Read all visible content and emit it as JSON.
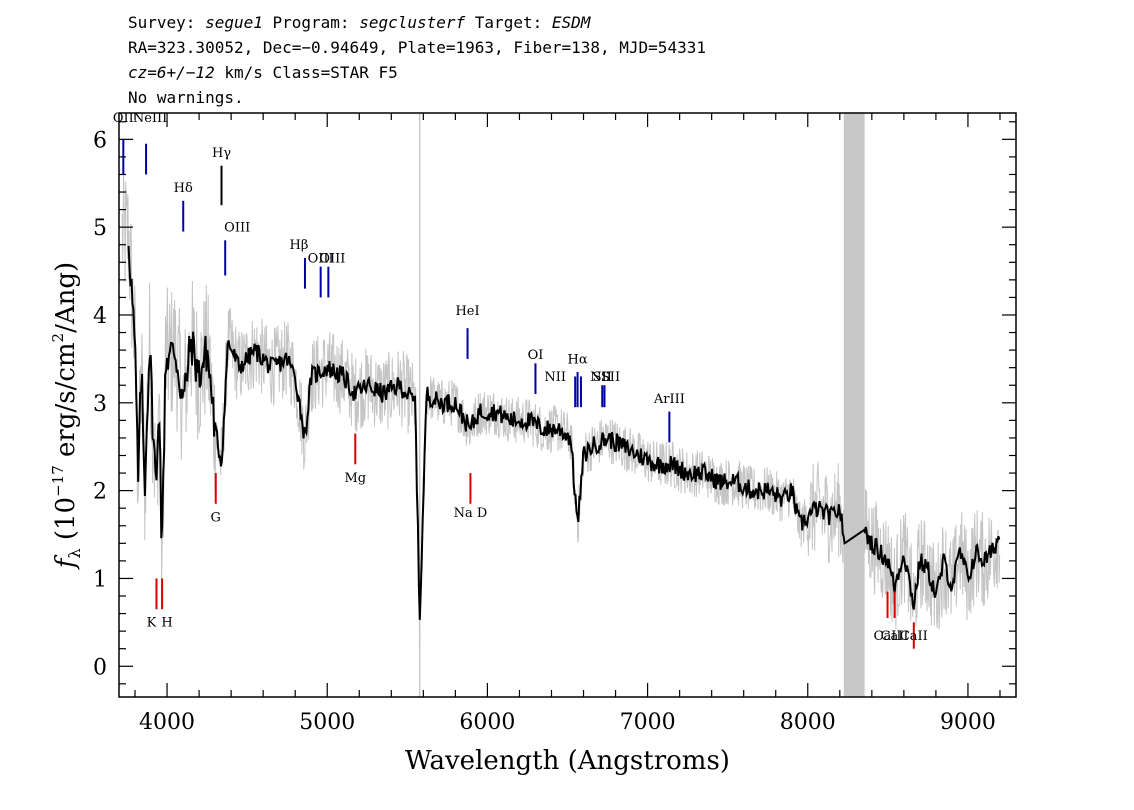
{
  "header": {
    "line1": {
      "survey_label": "Survey: ",
      "survey": "segue1",
      "program_label": " Program: ",
      "program": "segclusterf",
      "target_label": " Target: ",
      "target": "ESDM"
    },
    "line2": "RA=323.30052, Dec=−0.94649, Plate=1963, Fiber=138, MJD=54331",
    "line3": {
      "redshift": "cz=6+/−12",
      "rest": " km/s Class=STAR F5"
    },
    "line4": "No warnings."
  },
  "chart_data": {
    "type": "line",
    "xlabel": "Wavelength (Angstroms)",
    "ylabel": "f_λ (10^-17 erg/s/cm^2/Ang)",
    "ylabel_parts": {
      "f": "f",
      "lambda": "λ",
      "pre": " (10",
      "exp1": "−17",
      "mid": " erg/s/cm",
      "exp2": "2",
      "post": "/Ang)"
    },
    "xlim": [
      3700,
      9300
    ],
    "ylim": [
      -0.35,
      6.3
    ],
    "x_ticks": [
      4000,
      5000,
      6000,
      7000,
      8000,
      9000
    ],
    "x_tick_labels": [
      "4000",
      "5000",
      "6000",
      "7000",
      "8000",
      "9000"
    ],
    "y_ticks": [
      0,
      1,
      2,
      3,
      4,
      5,
      6
    ],
    "y_tick_labels": [
      "0",
      "1",
      "2",
      "3",
      "4",
      "5",
      "6"
    ],
    "masked_band": [
      8225,
      8355
    ],
    "sky_line": 5577,
    "series": [
      {
        "role": "smoothed_flux",
        "color": "#000000",
        "x": [
          3760,
          3800,
          3820,
          3840,
          3860,
          3890,
          3920,
          3934,
          3950,
          3968,
          3990,
          4050,
          4101,
          4150,
          4200,
          4250,
          4300,
          4340,
          4380,
          4450,
          4550,
          4650,
          4750,
          4800,
          4861,
          4900,
          5000,
          5100,
          5173,
          5250,
          5350,
          5450,
          5550,
          5577,
          5620,
          5700,
          5800,
          5890,
          5950,
          6050,
          6150,
          6250,
          6350,
          6450,
          6520,
          6563,
          6600,
          6650,
          6750,
          6850,
          6950,
          7050,
          7150,
          7250,
          7350,
          7450,
          7550,
          7650,
          7750,
          7850,
          7900,
          7950,
          8050,
          8150,
          8200,
          8230,
          8350,
          8400,
          8450,
          8500,
          8542,
          8600,
          8662,
          8700,
          8750,
          8800,
          8850,
          8900,
          8950,
          9000,
          9050,
          9100,
          9150,
          9200
        ],
        "y": [
          4.9,
          3.6,
          2.1,
          3.4,
          2.0,
          3.7,
          2.4,
          2.0,
          3.2,
          1.2,
          3.5,
          3.6,
          3.0,
          3.7,
          3.3,
          3.6,
          2.7,
          2.3,
          3.7,
          3.4,
          3.6,
          3.4,
          3.5,
          3.3,
          2.6,
          3.3,
          3.4,
          3.3,
          3.1,
          3.2,
          3.1,
          3.2,
          3.0,
          0.5,
          3.1,
          3.0,
          3.0,
          2.7,
          2.9,
          2.9,
          2.8,
          2.8,
          2.7,
          2.7,
          2.6,
          1.6,
          2.4,
          2.5,
          2.6,
          2.5,
          2.4,
          2.3,
          2.3,
          2.2,
          2.2,
          2.1,
          2.1,
          2.0,
          2.0,
          1.9,
          2.0,
          1.6,
          1.8,
          1.7,
          1.8,
          1.4,
          1.55,
          1.4,
          1.3,
          1.2,
          0.9,
          1.3,
          0.7,
          1.2,
          1.1,
          0.8,
          1.2,
          0.9,
          1.3,
          1.0,
          1.3,
          1.2,
          1.3,
          1.5
        ]
      },
      {
        "role": "raw_flux",
        "color": "#c4c4c4",
        "x": [
          3720,
          9200
        ],
        "y": [
          4.0,
          1.4
        ]
      }
    ],
    "emission_lines": [
      {
        "label": "OII",
        "wave": 3727,
        "color": "#0000aa"
      },
      {
        "label": "NeIII",
        "wave": 3869,
        "color": "#0000aa"
      },
      {
        "label": "Hδ",
        "wave": 4101,
        "color": "#0000aa"
      },
      {
        "label": "Hγ",
        "wave": 4340,
        "color": "#000000"
      },
      {
        "label": "OIII",
        "wave": 4363,
        "color": "#0000aa"
      },
      {
        "label": "Hβ",
        "wave": 4861,
        "color": "#0000aa"
      },
      {
        "label": "OIII",
        "wave": 4959,
        "color": "#0000aa"
      },
      {
        "label": "OIII",
        "wave": 5007,
        "color": "#0000aa"
      },
      {
        "label": "HeI",
        "wave": 5876,
        "color": "#0000aa"
      },
      {
        "label": "OI",
        "wave": 6300,
        "color": "#0000aa"
      },
      {
        "label": "NII",
        "wave": 6548,
        "color": "#0000aa"
      },
      {
        "label": "Hα",
        "wave": 6563,
        "color": "#0000aa"
      },
      {
        "label": "NII",
        "wave": 6584,
        "color": "#0000aa"
      },
      {
        "label": "SII",
        "wave": 6717,
        "color": "#0000aa"
      },
      {
        "label": "SII",
        "wave": 6731,
        "color": "#0000aa"
      },
      {
        "label": "ArIII",
        "wave": 7136,
        "color": "#0000aa"
      }
    ],
    "absorption_lines": [
      {
        "label": "K",
        "wave": 3934,
        "color": "#dd0000"
      },
      {
        "label": "H",
        "wave": 3969,
        "color": "#dd0000"
      },
      {
        "label": "G",
        "wave": 4304,
        "color": "#dd0000"
      },
      {
        "label": "Mg",
        "wave": 5175,
        "color": "#dd0000"
      },
      {
        "label": "Na D",
        "wave": 5894,
        "color": "#dd0000"
      },
      {
        "label": "CaII",
        "wave": 8498,
        "color": "#dd0000"
      },
      {
        "label": "CaII",
        "wave": 8542,
        "color": "#dd0000"
      },
      {
        "label": "CaII",
        "wave": 8662,
        "color": "#dd0000"
      }
    ]
  }
}
